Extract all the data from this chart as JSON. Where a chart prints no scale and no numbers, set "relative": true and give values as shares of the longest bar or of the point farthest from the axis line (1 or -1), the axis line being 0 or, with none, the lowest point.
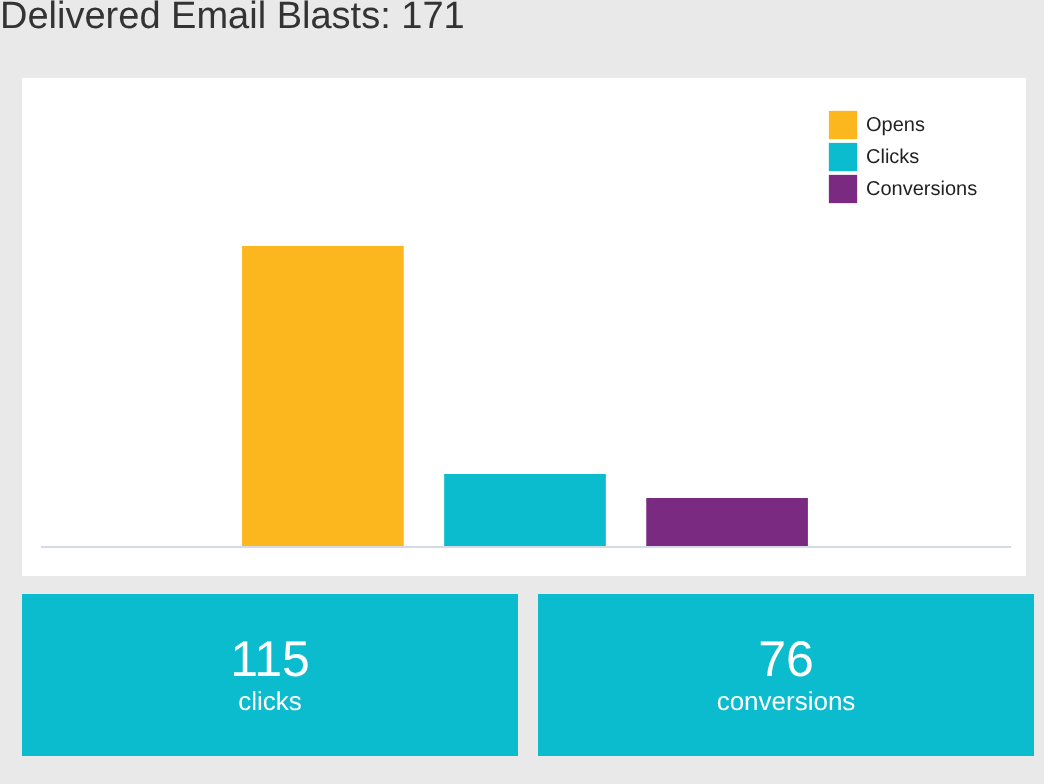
{
  "chart_data": [
    {
      "type": "bar",
      "title": "Delivered Email Blasts: 171",
      "categories": [
        null
      ],
      "relative": true,
      "legend": "top right",
      "series": [
        {
          "name": "Opens",
          "color": "#fdb71e",
          "values": [
            1
          ]
        },
        {
          "name": "Clicks",
          "color": "#0abccd",
          "values": [
            0.24
          ]
        },
        {
          "name": "Conversions",
          "color": "#7b2a82",
          "values": [
            0.16
          ]
        }
      ]
    },
    {
      "type": "other",
      "categories": [
        "clicks",
        "conversions"
      ],
      "values": [
        115,
        76
      ],
      "data_labels": true,
      "colors": [
        "#0abccd",
        "#0abccd"
      ]
    }
  ]
}
